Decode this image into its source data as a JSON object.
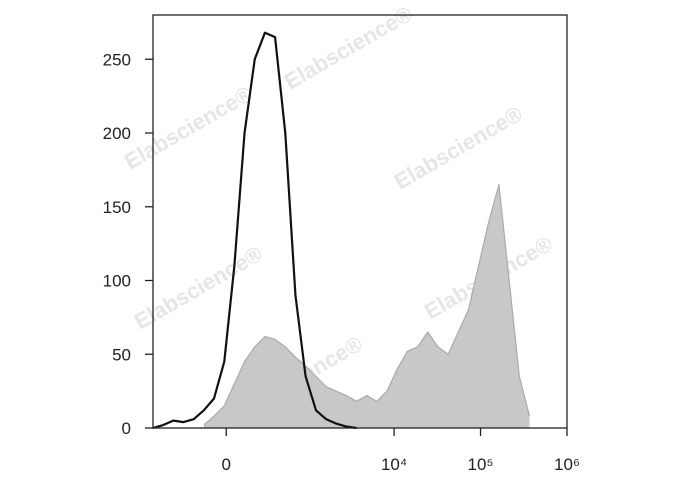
{
  "chart_data": {
    "type": "histogram-overlay",
    "watermark": "Elabscience®",
    "xscale": "asinh",
    "xlim": [
      -789,
      1000000
    ],
    "xticks": [
      0,
      {
        "value": 10000,
        "label": "10⁴"
      },
      {
        "value": 100000,
        "label": "10⁵"
      },
      {
        "value": 1000000,
        "label": "10⁶"
      }
    ],
    "ylim": [
      0,
      280
    ],
    "yticks": [
      0,
      50,
      100,
      150,
      200,
      250
    ],
    "x": [
      -789,
      -593,
      -441,
      -321,
      -224,
      -145,
      -76,
      -12,
      50,
      116,
      191,
      280,
      389,
      528,
      705,
      934,
      1239,
      1626,
      2132,
      2798,
      3671,
      4818,
      6320,
      8290,
      10866,
      14245,
      18686,
      24500,
      32130,
      42140,
      55260,
      72450,
      95000,
      124600,
      163300,
      214200,
      280800,
      368300
    ],
    "series": [
      {
        "color": "#c8c8c8",
        "values": [
          null,
          null,
          null,
          null,
          null,
          2,
          8,
          15,
          30,
          45,
          55,
          62,
          60,
          55,
          48,
          42,
          35,
          28,
          25,
          22,
          18,
          22,
          18,
          25,
          40,
          52,
          55,
          65,
          55,
          50,
          65,
          80,
          110,
          140,
          165,
          100,
          35,
          8
        ]
      },
      {
        "color": "#111111",
        "values": [
          0,
          2,
          5,
          4,
          6,
          12,
          20,
          45,
          110,
          200,
          250,
          268,
          265,
          200,
          90,
          35,
          12,
          6,
          3,
          1,
          0,
          null,
          null,
          null,
          null,
          null,
          null,
          null,
          null,
          null,
          null,
          null,
          null,
          null,
          null,
          null,
          null,
          null
        ]
      }
    ]
  }
}
